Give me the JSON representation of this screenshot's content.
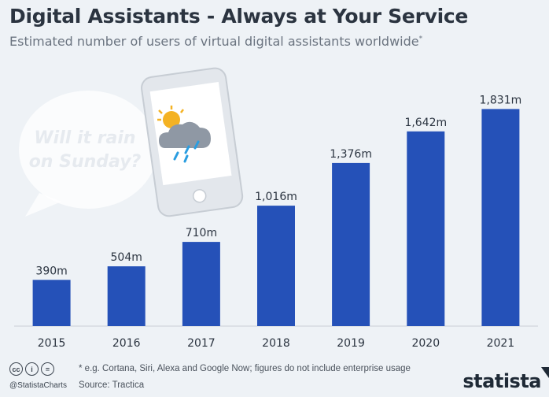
{
  "header": {
    "title": "Digital Assistants - Always at Your Service",
    "subtitle": "Estimated number of users of virtual digital assistants worldwide",
    "subtitle_mark": "*"
  },
  "illustration": {
    "bubble_line1": "Will it rain",
    "bubble_line2": "on Sunday?",
    "icon": "sun-cloud-rain-icon"
  },
  "chart_data": {
    "type": "bar",
    "title": "Digital Assistants - Always at Your Service",
    "categories": [
      "2015",
      "2016",
      "2017",
      "2018",
      "2019",
      "2020",
      "2021"
    ],
    "values": [
      390,
      504,
      710,
      1016,
      1376,
      1642,
      1831
    ],
    "data_labels": [
      "390m",
      "504m",
      "710m",
      "1,016m",
      "1,376m",
      "1,642m",
      "1,831m"
    ],
    "unit": "m",
    "ylim": [
      0,
      1900
    ],
    "grid": false,
    "bar_color": "#2551b8"
  },
  "footer": {
    "note": "* e.g. Cortana, Siri, Alexa and Google Now; figures do not include enterprise usage",
    "source": "Source: Tractica",
    "handle": "@StatistaCharts",
    "brand": "statista",
    "license_icons": [
      "cc",
      "i",
      "="
    ]
  },
  "colors": {
    "background": "#eef2f6",
    "bar": "#2551b8",
    "title": "#2b3440"
  }
}
